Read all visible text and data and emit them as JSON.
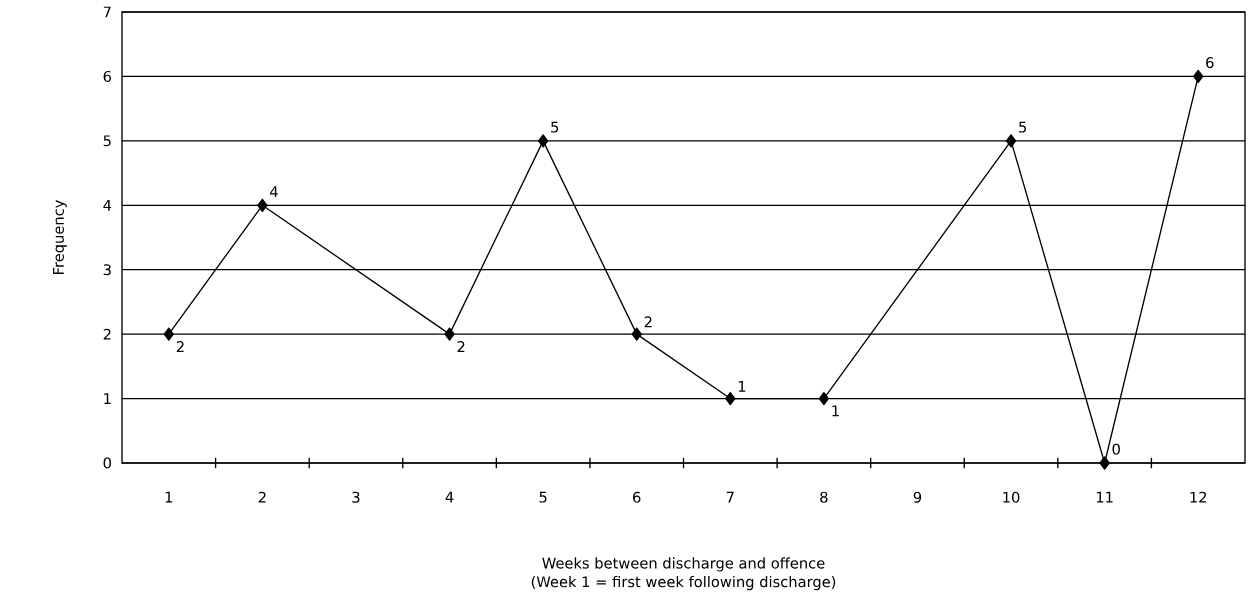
{
  "chart_data": {
    "type": "line",
    "xlabel": "Weeks between discharge and offence",
    "ylabel": "Frequency",
    "annotations": [
      "(Week 1 = first week following discharge)"
    ],
    "categories": [
      "1",
      "2",
      "3",
      "4",
      "5",
      "6",
      "7",
      "8",
      "9",
      "10",
      "11",
      "12"
    ],
    "series": [
      {
        "color": "#000000",
        "values": [
          2,
          4,
          null,
          2,
          5,
          2,
          1,
          1,
          null,
          5,
          0,
          6
        ]
      }
    ],
    "ylim": [
      0,
      7
    ],
    "yticks": [
      0,
      1,
      2,
      3,
      4,
      5,
      6,
      7
    ],
    "grid": "y",
    "marker": "diamond",
    "line_style": "solid",
    "data_labels": true
  }
}
